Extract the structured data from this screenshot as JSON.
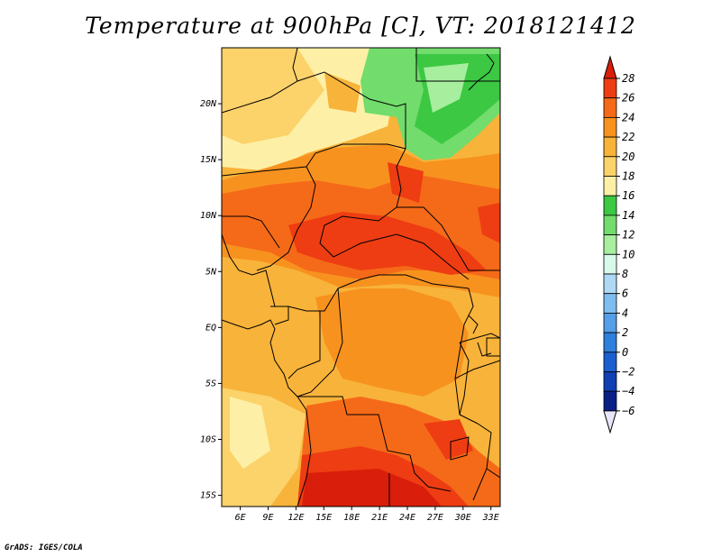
{
  "title": "Temperature at 900hPa [C], VT: 2018121412",
  "footer": "GrADS: IGES/COLA",
  "map": {
    "extent": {
      "lon_min": 4,
      "lon_max": 34,
      "lat_min": -16,
      "lat_max": 25
    },
    "lat_ticks": [
      {
        "label": "20N",
        "lat": 20
      },
      {
        "label": "15N",
        "lat": 15
      },
      {
        "label": "10N",
        "lat": 10
      },
      {
        "label": "5N",
        "lat": 5
      },
      {
        "label": "EQ",
        "lat": 0
      },
      {
        "label": "5S",
        "lat": -5
      },
      {
        "label": "10S",
        "lat": -10
      },
      {
        "label": "15S",
        "lat": -15
      }
    ],
    "lon_ticks": [
      {
        "label": "6E",
        "lon": 6
      },
      {
        "label": "9E",
        "lon": 9
      },
      {
        "label": "12E",
        "lon": 12
      },
      {
        "label": "15E",
        "lon": 15
      },
      {
        "label": "18E",
        "lon": 18
      },
      {
        "label": "21E",
        "lon": 21
      },
      {
        "label": "24E",
        "lon": 24
      },
      {
        "label": "27E",
        "lon": 27
      },
      {
        "label": "30E",
        "lon": 30
      },
      {
        "label": "33E",
        "lon": 33
      }
    ]
  },
  "colorbar": {
    "levels": [
      28,
      26,
      24,
      22,
      20,
      18,
      16,
      14,
      12,
      10,
      8,
      6,
      4,
      2,
      0,
      -2,
      -4,
      -6
    ],
    "colors": [
      "#d91e0b",
      "#ee3d12",
      "#f56a18",
      "#f7921f",
      "#f8b33a",
      "#fcd26a",
      "#fdf0a6",
      "#3cc843",
      "#72dc6c",
      "#a7ee9e",
      "#d8f8ea",
      "#afd8f5",
      "#7ebdef",
      "#559ee8",
      "#2f7fdc",
      "#1a5fcf",
      "#0f3fb3",
      "#0a1f86",
      "#06105c"
    ],
    "top_color": "#d91e0b",
    "bottom_color": "#e8e6fa"
  }
}
